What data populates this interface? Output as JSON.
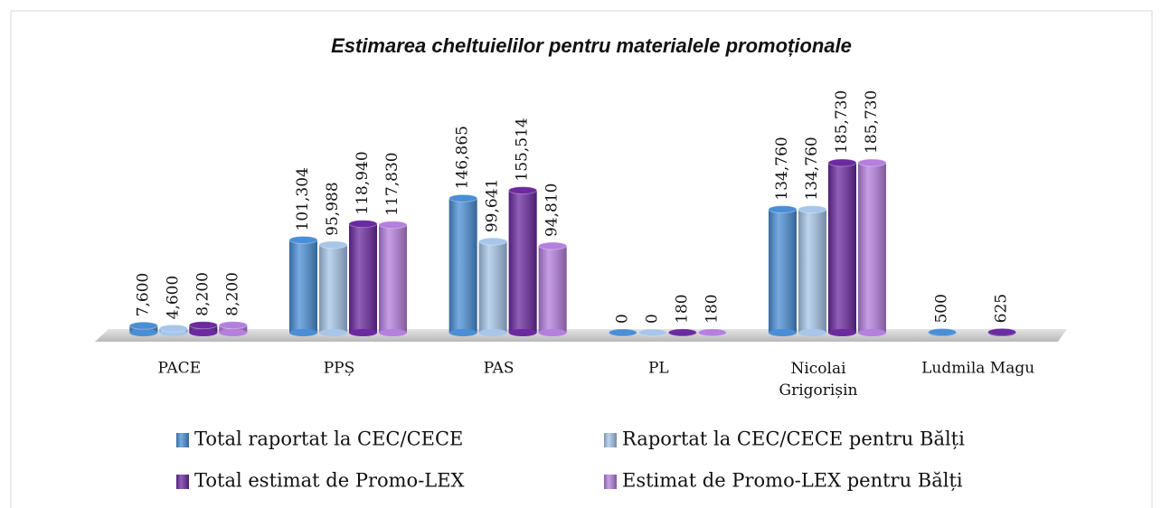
{
  "chart_data": {
    "type": "bar",
    "title": "Estimarea cheltuielilor pentru materialele promoționale",
    "categories": [
      "PACE",
      "PPȘ",
      "PAS",
      "PL",
      "Nicolai Grigorișin",
      "Ludmila Magu"
    ],
    "series": [
      {
        "name": "Total raportat la CEC/CECE",
        "color": "#4a8fd6",
        "values": [
          7600,
          101304,
          146865,
          0,
          134760,
          500
        ],
        "value_labels": [
          "7,600",
          "101,304",
          "146,865",
          "0",
          "134,760",
          "500"
        ]
      },
      {
        "name": "Raportat la CEC/CECE pentru Bălți",
        "color": "#a7c6ea",
        "values": [
          4600,
          95988,
          99641,
          0,
          134760,
          null
        ],
        "value_labels": [
          "4,600",
          "95,988",
          "99,641",
          "0",
          "134,760",
          null
        ]
      },
      {
        "name": "Total estimat de Promo-LEX",
        "color": "#6b2aa0",
        "values": [
          8200,
          118940,
          155514,
          180,
          185730,
          625
        ],
        "value_labels": [
          "8,200",
          "118,940",
          "155,514",
          "180",
          "185,730",
          "625"
        ]
      },
      {
        "name": "Estimat de Promo-LEX pentru Bălți",
        "color": "#b57fde",
        "values": [
          8200,
          117830,
          94810,
          180,
          185730,
          null
        ],
        "value_labels": [
          "8,200",
          "117,830",
          "94,810",
          "180",
          "185,730",
          null
        ]
      }
    ]
  }
}
